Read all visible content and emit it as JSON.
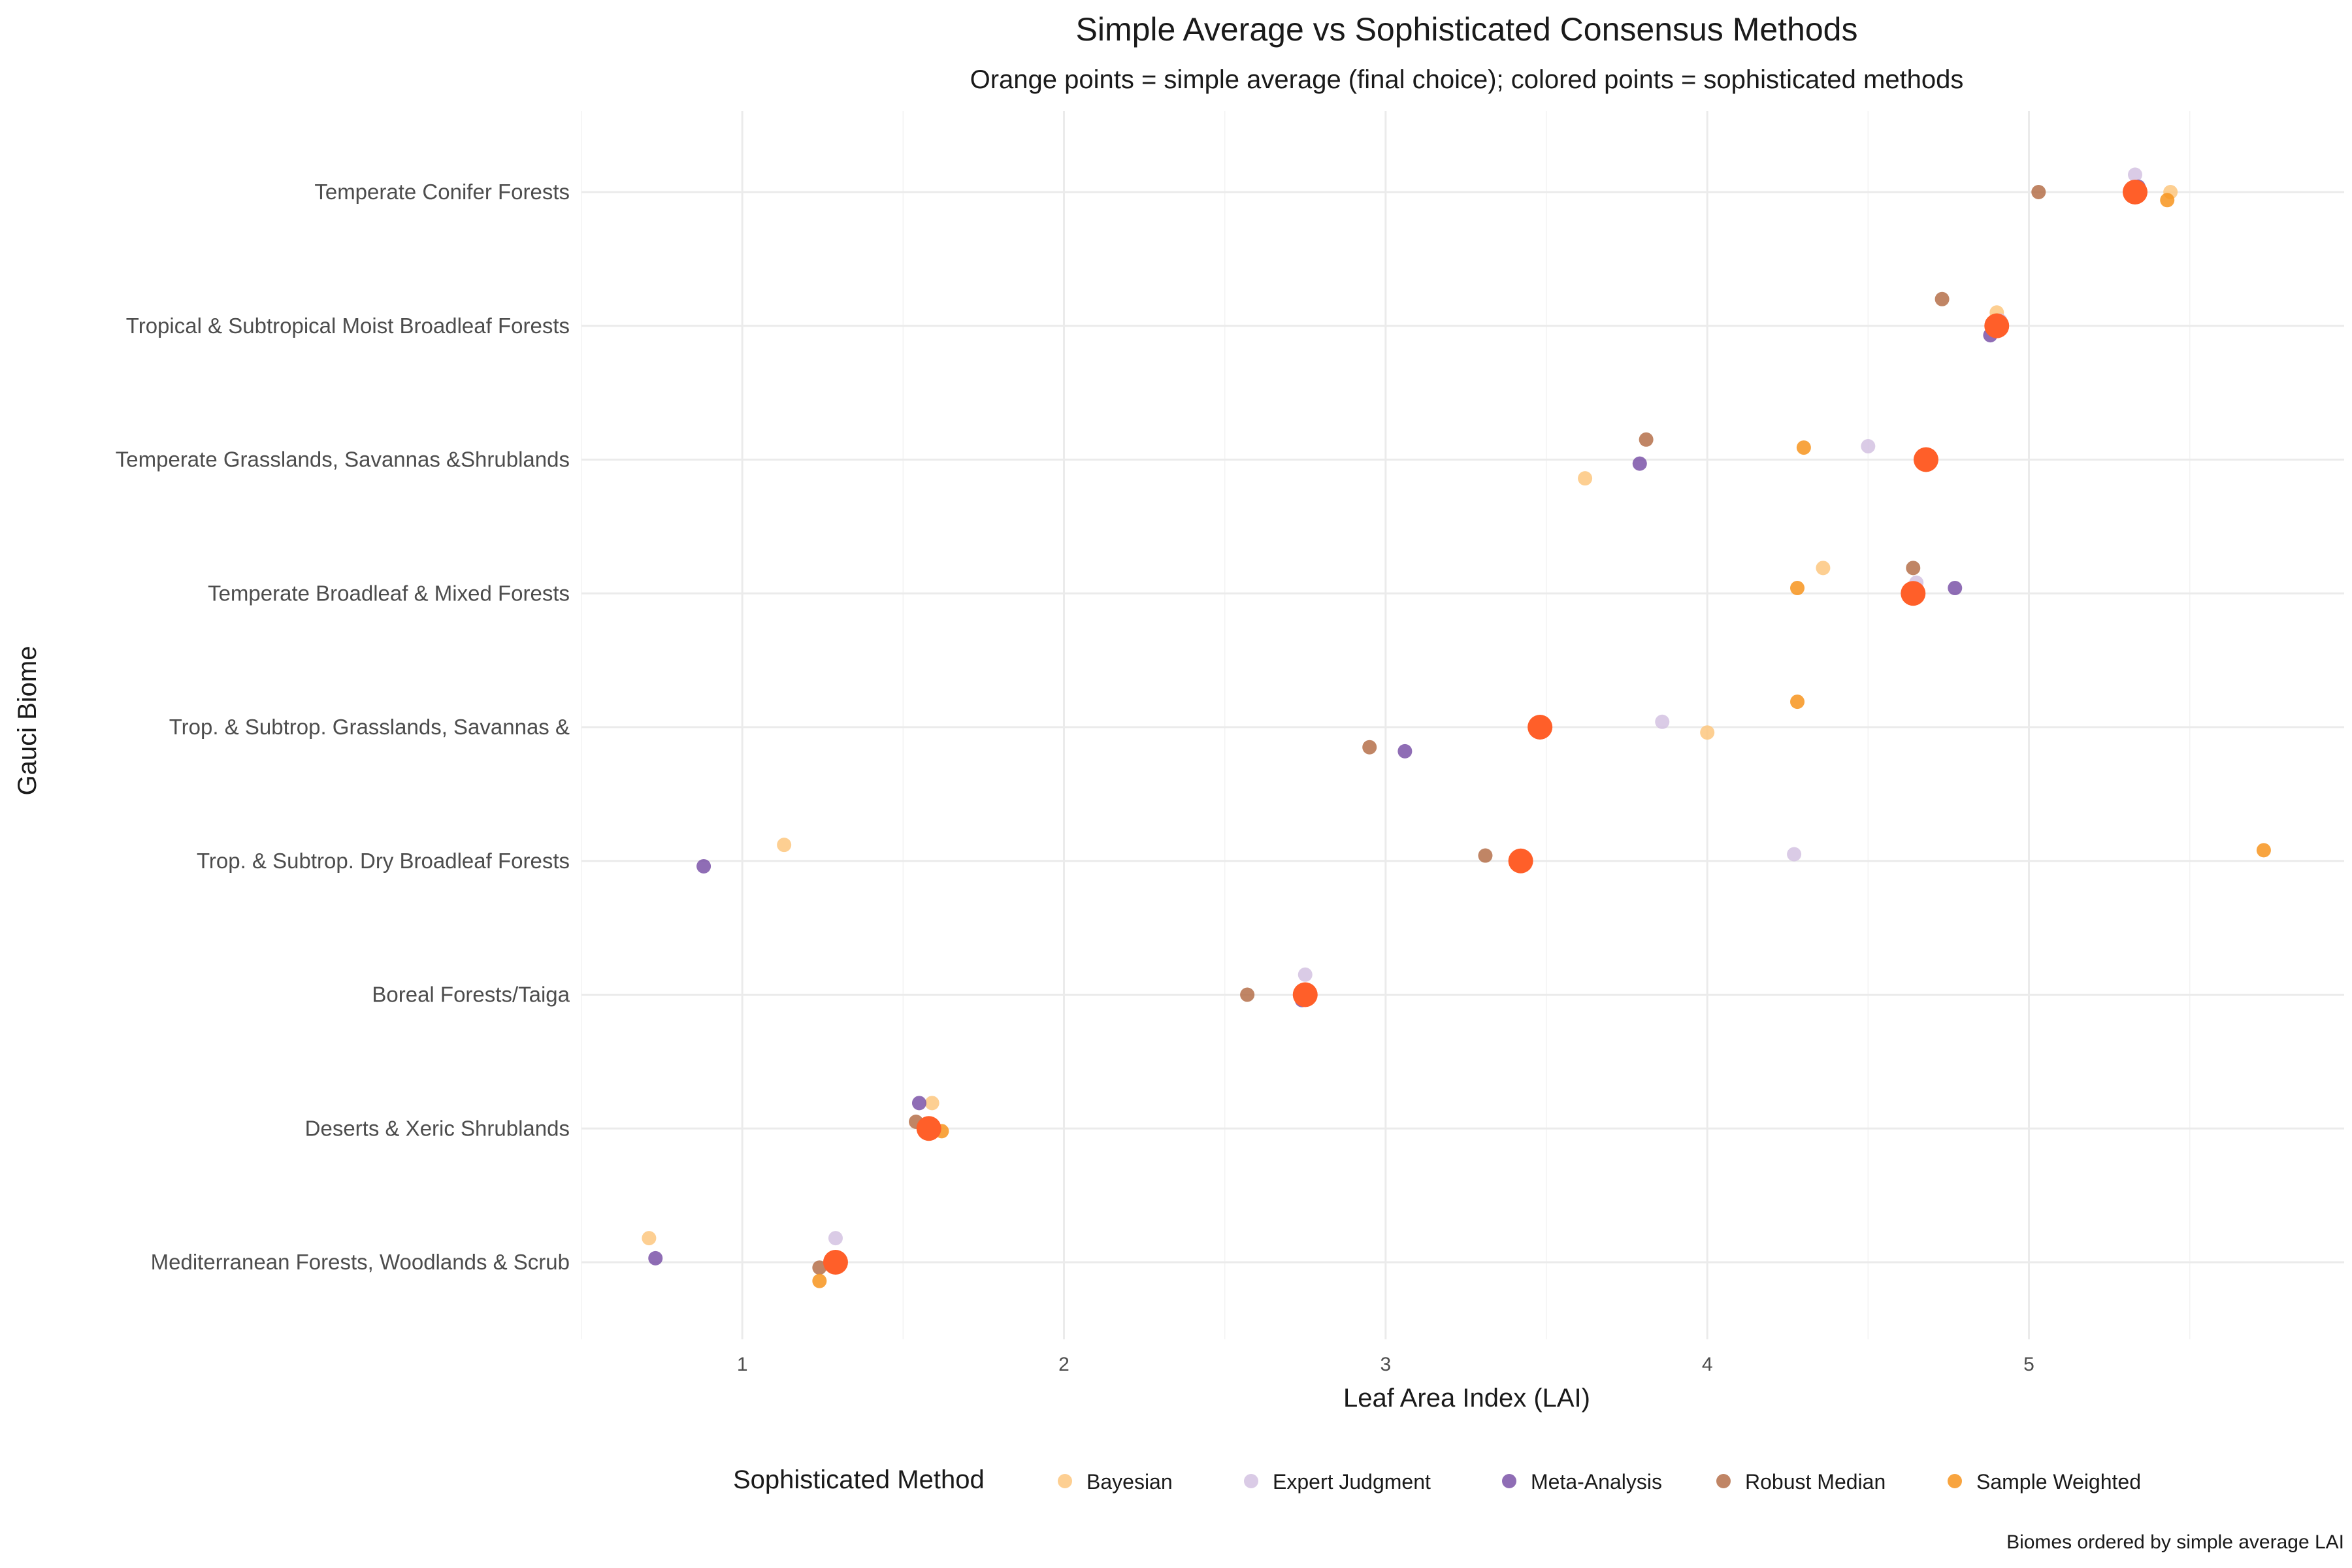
{
  "chart_data": {
    "type": "scatter",
    "title": "Simple Average vs Sophisticated Consensus Methods",
    "subtitle": "Orange points = simple average (final choice); colored points = sophisticated methods",
    "xlabel": "Leaf Area Index (LAI)",
    "ylabel": "Gauci Biome",
    "caption": "Biomes ordered by simple average LAI",
    "xlim": [
      0.5,
      5.98
    ],
    "x_ticks": [
      1,
      2,
      3,
      4,
      5
    ],
    "grid": true,
    "legend": {
      "title": "Sophisticated Method",
      "position": "bottom"
    },
    "categories": [
      "Temperate Conifer Forests",
      "Tropical & Subtropical Moist Broadleaf Forests",
      "Temperate Grasslands, Savannas &Shrublands",
      "Temperate Broadleaf & Mixed Forests",
      "Trop. & Subtrop. Grasslands, Savannas &",
      "Trop. & Subtrop. Dry Broadleaf Forests",
      "Boreal Forests/Taiga",
      "Deserts & Xeric Shrublands",
      "Mediterranean Forests, Woodlands & Scrub"
    ],
    "simple_average": {
      "color": "#ff5f29",
      "values": [
        5.33,
        4.9,
        4.68,
        4.64,
        3.48,
        3.42,
        2.75,
        1.58,
        1.29
      ]
    },
    "series": [
      {
        "name": "Bayesian",
        "color": "#fdc77f",
        "values": [
          5.44,
          4.9,
          3.62,
          4.36,
          4.0,
          1.13,
          2.75,
          1.59,
          0.71
        ],
        "jitter": [
          0.0,
          -0.1,
          0.14,
          -0.19,
          0.04,
          -0.12,
          0.0,
          -0.19,
          -0.18
        ]
      },
      {
        "name": "Expert Judgment",
        "color": "#d4c2e2",
        "values": [
          5.33,
          4.91,
          4.5,
          4.65,
          3.86,
          4.27,
          2.75,
          1.58,
          1.29
        ],
        "jitter": [
          -0.13,
          -0.04,
          -0.1,
          -0.08,
          -0.04,
          -0.05,
          -0.15,
          0.0,
          -0.18
        ]
      },
      {
        "name": "Meta-Analysis",
        "color": "#7b53a8",
        "values": [
          5.34,
          4.88,
          3.79,
          4.77,
          3.06,
          0.88,
          2.74,
          1.55,
          0.73
        ],
        "jitter": [
          -0.04,
          0.07,
          0.03,
          -0.04,
          0.18,
          0.04,
          0.04,
          -0.19,
          -0.03
        ]
      },
      {
        "name": "Robust Median",
        "color": "#b5704a",
        "values": [
          5.03,
          4.73,
          3.81,
          4.64,
          2.95,
          3.31,
          2.57,
          1.54,
          1.24
        ],
        "jitter": [
          0.0,
          -0.2,
          -0.15,
          -0.19,
          0.15,
          -0.04,
          0.0,
          -0.05,
          0.04
        ]
      },
      {
        "name": "Sample Weighted",
        "color": "#f7941d",
        "values": [
          5.43,
          4.9,
          4.3,
          4.28,
          4.28,
          5.73,
          2.75,
          1.62,
          1.24
        ],
        "jitter": [
          0.06,
          -0.04,
          -0.09,
          -0.04,
          -0.19,
          -0.08,
          0.0,
          0.02,
          0.14
        ]
      }
    ]
  }
}
